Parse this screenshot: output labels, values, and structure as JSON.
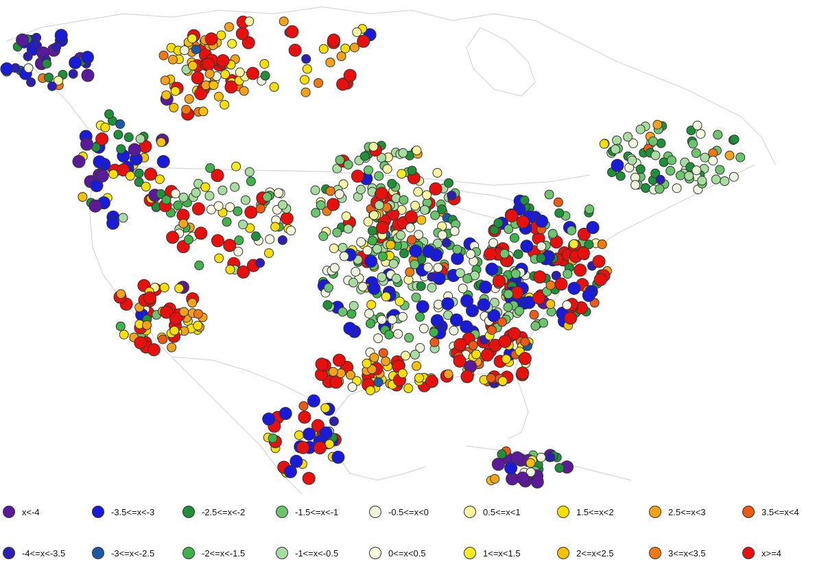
{
  "map": {
    "region": "North America",
    "basemap_color": "#d6d6d6",
    "point_count_note": "dense scatter of station markers"
  },
  "colors": {
    "x<-4": "#5b1a99",
    "-4<=x<-3.5": "#2d1fb3",
    "-3.5<=x<-3": "#1a1ad9",
    "-3<=x<-2.5": "#1a5aa8",
    "-2.5<=x<-2": "#1f8f3a",
    "-2<=x<-1.5": "#3fb24a",
    "-1.5<=x<-1": "#6cc46c",
    "-1<=x<-0.5": "#a8dca0",
    "-0.5<=x<0": "#eef5dc",
    "0<=x<0.5": "#fafae0",
    "0.5<=x<1": "#f8f4a0",
    "1<=x<1.5": "#f5ec20",
    "1.5<=x<2": "#f7e000",
    "2<=x<2.5": "#f6c200",
    "2.5<=x<3": "#f3a21a",
    "3<=x<3.5": "#f07a10",
    "3.5<=x<4": "#ec5a14",
    "x>=4": "#e8100c"
  },
  "legend": {
    "row1": [
      {
        "key": "x<-4",
        "label": "x<-4"
      },
      {
        "key": "-3.5<=x<-3",
        "label": "-3.5<=x<-3"
      },
      {
        "key": "-2.5<=x<-2",
        "label": "-2.5<=x<-2"
      },
      {
        "key": "-1.5<=x<-1",
        "label": "-1.5<=x<-1"
      },
      {
        "key": "-0.5<=x<0",
        "label": "-0.5<=x<0"
      },
      {
        "key": "0.5<=x<1",
        "label": "0.5<=x<1"
      },
      {
        "key": "1.5<=x<2",
        "label": "1.5<=x<2"
      },
      {
        "key": "2.5<=x<3",
        "label": "2.5<=x<3"
      },
      {
        "key": "3.5<=x<4",
        "label": "3.5<=x<4"
      }
    ],
    "row2": [
      {
        "key": "-4<=x<-3.5",
        "label": "-4<=x<-3.5"
      },
      {
        "key": "-3<=x<-2.5",
        "label": "-3<=x<-2.5"
      },
      {
        "key": "-2<=x<-1.5",
        "label": "-2<=x<-1.5"
      },
      {
        "key": "-1<=x<-0.5",
        "label": "-1<=x<-0.5"
      },
      {
        "key": "0<=x<0.5",
        "label": "0<=x<0.5"
      },
      {
        "key": "1<=x<1.5",
        "label": "1<=x<1.5"
      },
      {
        "key": "2<=x<2.5",
        "label": "2<=x<2.5"
      },
      {
        "key": "3<=x<3.5",
        "label": "3<=x<3.5"
      },
      {
        "key": "x>=4",
        "label": "x>=4"
      }
    ]
  }
}
